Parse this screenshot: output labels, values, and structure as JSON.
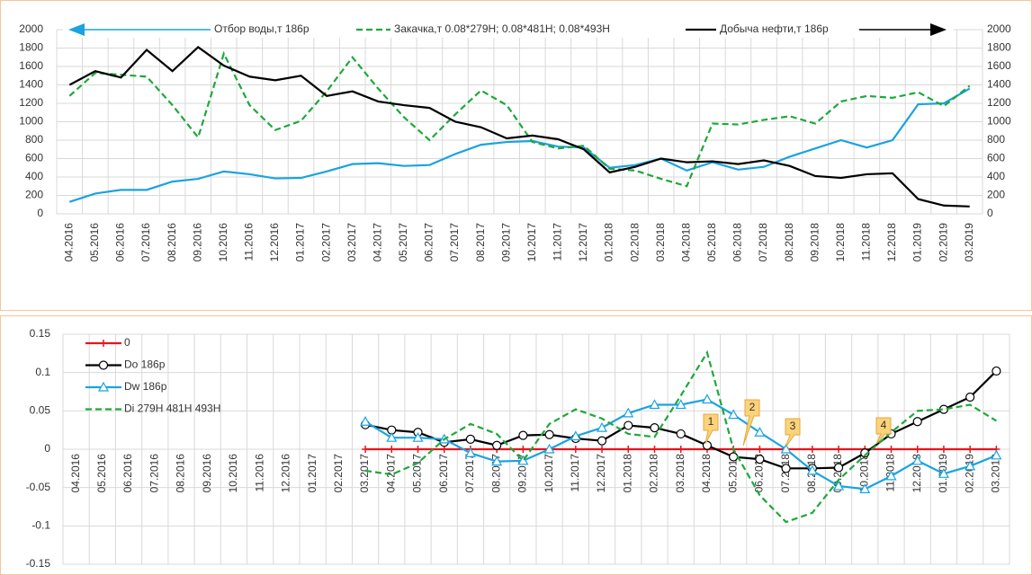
{
  "chart_data": [
    {
      "type": "line",
      "categories": [
        "04.2016",
        "05.2016",
        "06.2016",
        "07.2016",
        "08.2016",
        "09.2016",
        "10.2016",
        "11.2016",
        "12.2016",
        "01.2017",
        "02.2017",
        "03.2017",
        "04.2017",
        "05.2017",
        "06.2017",
        "07.2017",
        "08.2017",
        "09.2017",
        "10.2017",
        "11.2017",
        "12.2017",
        "01.2018",
        "02.2018",
        "03.2018",
        "04.2018",
        "05.2018",
        "06.2018",
        "07.2018",
        "08.2018",
        "09.2018",
        "10.2018",
        "11.2018",
        "12.2018",
        "01.2019",
        "02.2019",
        "03.2019"
      ],
      "series": [
        {
          "name": "Отбор воды,т 186р",
          "color": "#1aa3e0",
          "dash": false,
          "values": [
            130,
            220,
            260,
            260,
            350,
            380,
            460,
            430,
            385,
            390,
            460,
            540,
            550,
            520,
            530,
            650,
            750,
            780,
            790,
            730,
            720,
            500,
            530,
            600,
            470,
            560,
            480,
            510,
            620,
            710,
            800,
            720,
            800,
            1190,
            1200,
            1360
          ]
        },
        {
          "name": "Закачка,т 0.08*279Н; 0.08*481Н; 0.08*493Н",
          "color": "#1fa83c",
          "dash": true,
          "values": [
            1280,
            1530,
            1510,
            1490,
            1180,
            830,
            1740,
            1180,
            910,
            1010,
            1330,
            1700,
            1360,
            1050,
            800,
            1080,
            1340,
            1180,
            780,
            710,
            740,
            490,
            470,
            380,
            300,
            980,
            970,
            1020,
            1060,
            980,
            1220,
            1280,
            1260,
            1320,
            1170,
            1390
          ]
        },
        {
          "name": "Добыча нефти,т 186р",
          "color": "#000000",
          "dash": false,
          "axis": "y2",
          "values": [
            1400,
            1550,
            1480,
            1780,
            1550,
            1810,
            1610,
            1490,
            1450,
            1500,
            1280,
            1330,
            1220,
            1180,
            1150,
            1000,
            940,
            820,
            850,
            810,
            700,
            450,
            510,
            600,
            560,
            570,
            540,
            580,
            520,
            410,
            390,
            430,
            440,
            160,
            90,
            80
          ]
        }
      ],
      "ylim": [
        0,
        2000
      ],
      "yticks": [
        0,
        200,
        400,
        600,
        800,
        1000,
        1200,
        1400,
        1600,
        1800,
        2000
      ],
      "y2lim": [
        0,
        2000
      ],
      "y2ticks": [
        0,
        200,
        400,
        600,
        800,
        1000,
        1200,
        1400,
        1600,
        1800,
        2000
      ],
      "grid": true
    },
    {
      "type": "line",
      "categories": [
        "04.2016",
        "05.2016",
        "06.2016",
        "07.2016",
        "08.2016",
        "09.2016",
        "10.2016",
        "11.2016",
        "12.2016",
        "01.2017",
        "02.2017",
        "03.2017",
        "04.2017",
        "05.2017",
        "06.2017",
        "07.2017",
        "08.2017",
        "09.2017",
        "10.2017",
        "11.2017",
        "12.2017",
        "01.2018",
        "02.2018",
        "03.2018",
        "04.2018",
        "05.2018",
        "06.2018",
        "07.2018",
        "08.2018",
        "09.2018",
        "10.2018",
        "11.2018",
        "12.2018",
        "01.2019",
        "02.2019",
        "03.2019"
      ],
      "series": [
        {
          "name": "0",
          "color": "#e8141c",
          "dash": false,
          "marker": "plus",
          "values": [
            null,
            null,
            null,
            null,
            null,
            null,
            null,
            null,
            null,
            null,
            null,
            0,
            0,
            0,
            0,
            0,
            0,
            0,
            0,
            0,
            0,
            0,
            0,
            0,
            0,
            0,
            0,
            0,
            0,
            0,
            0,
            0,
            0,
            0,
            0,
            0
          ]
        },
        {
          "name": "Do 186р",
          "color": "#000000",
          "dash": false,
          "marker": "circle",
          "values": [
            null,
            null,
            null,
            null,
            null,
            null,
            null,
            null,
            null,
            null,
            null,
            0.032,
            0.025,
            0.022,
            0.009,
            0.013,
            0.005,
            0.018,
            0.019,
            0.014,
            0.011,
            0.031,
            0.028,
            0.02,
            0.005,
            -0.01,
            -0.013,
            -0.025,
            -0.025,
            -0.024,
            -0.005,
            0.02,
            0.036,
            0.052,
            0.068,
            0.102
          ]
        },
        {
          "name": "Dw 186р",
          "color": "#1aa3e0",
          "dash": false,
          "marker": "triangle",
          "values": [
            null,
            null,
            null,
            null,
            null,
            null,
            null,
            null,
            null,
            null,
            null,
            0.036,
            0.015,
            0.015,
            0.013,
            -0.005,
            -0.016,
            -0.015,
            0,
            0.017,
            0.028,
            0.047,
            0.058,
            0.058,
            0.065,
            0.045,
            0.022,
            0,
            -0.028,
            -0.048,
            -0.052,
            -0.035,
            -0.015,
            -0.032,
            -0.022,
            -0.008
          ]
        },
        {
          "name": "Di 279Н 481Н 493Н",
          "color": "#1fa83c",
          "dash": true,
          "values": [
            null,
            null,
            null,
            null,
            null,
            null,
            null,
            null,
            null,
            null,
            null,
            -0.028,
            -0.033,
            -0.018,
            0.013,
            0.033,
            0.02,
            -0.015,
            0.033,
            0.052,
            0.04,
            0.02,
            0.016,
            0.07,
            0.126,
            0,
            -0.06,
            -0.095,
            -0.083,
            -0.04,
            -0.008,
            0.022,
            0.05,
            0.052,
            0.058,
            0.037
          ]
        }
      ],
      "ylim": [
        -0.15,
        0.15
      ],
      "yticks": [
        -0.15,
        -0.1,
        -0.05,
        0,
        0.05,
        0.1,
        0.15
      ],
      "annotations": [
        "1",
        "2",
        "3",
        "4"
      ],
      "grid": true
    }
  ]
}
